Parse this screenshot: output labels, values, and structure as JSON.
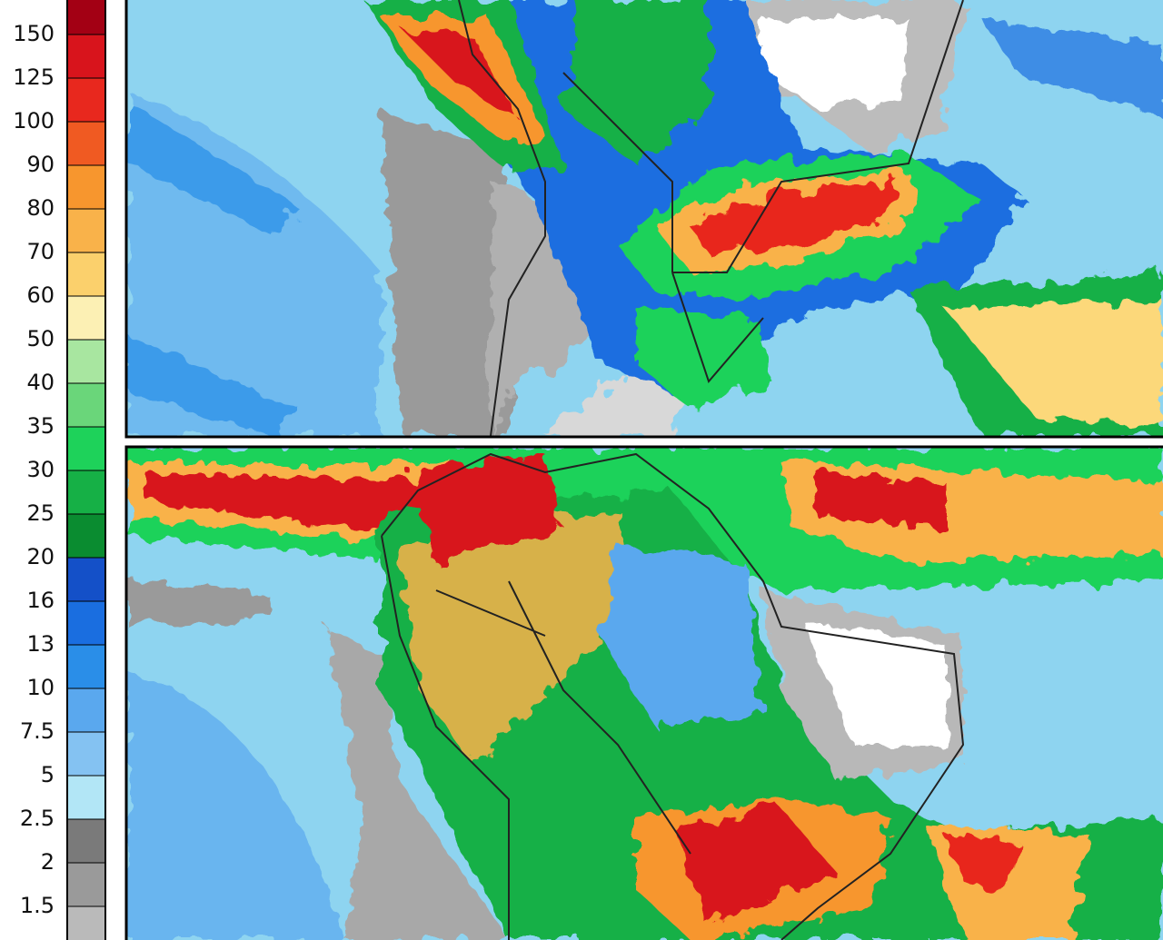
{
  "legend": {
    "ticks": [
      150,
      125,
      100,
      90,
      80,
      70,
      60,
      50,
      40,
      35,
      30,
      25,
      20,
      16,
      13,
      10,
      7.5,
      5,
      2.5,
      2,
      1.5
    ],
    "colors": [
      "#a30014",
      "#d8141c",
      "#e8281e",
      "#f05a22",
      "#f7962e",
      "#f9b24a",
      "#fbd06c",
      "#fcf0b4",
      "#a8e6a0",
      "#6ad67a",
      "#1ed25a",
      "#16b046",
      "#0a8c30",
      "#1450c8",
      "#1a6ee0",
      "#2a8ee8",
      "#5aa8ee",
      "#84c2f2",
      "#b2e6f6",
      "#7a7a7a",
      "#9a9a9a",
      "#bababa"
    ]
  }
}
